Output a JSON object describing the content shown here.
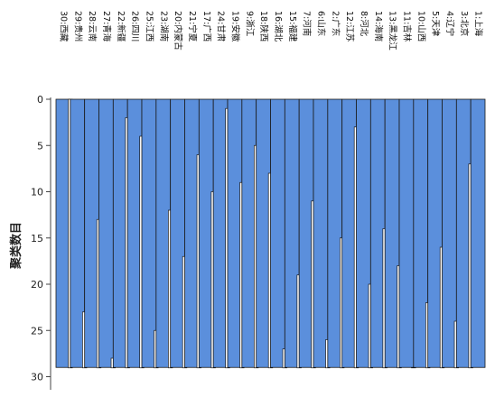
{
  "chart_data": {
    "type": "bar",
    "title": "",
    "xlabel": "",
    "ylabel": "聚类数目",
    "y_ticks": [
      0,
      5,
      10,
      15,
      20,
      25,
      30
    ],
    "ylim": [
      0,
      30
    ],
    "y_inverted": true,
    "grid": false,
    "bar_base": 29,
    "bar_color": "#5b8fdc",
    "gap_color": "#ffffff",
    "stroke_color": "#1a1a1a",
    "axis_color": "#444444",
    "categories": [
      "30:西藏",
      "29:贵州",
      "28:云南",
      "27:青海",
      "22:新疆",
      "26:四川",
      "25:江西",
      "23:湖南",
      "20:内蒙古",
      "21:宁夏",
      "17:广西",
      "24:甘肃",
      "19:安徽",
      "9:浙江",
      "18:陕西",
      "16:湖北",
      "15:福建",
      "7:河南",
      "6:山东",
      "2:广东",
      "12:江苏",
      "8:河北",
      "14:海南",
      "13:黑龙江",
      "11:吉林",
      "10:山西",
      "5:天津",
      "4:辽宁",
      "3:北京",
      "1:上海"
    ],
    "values": [
      0,
      23,
      13,
      28,
      2,
      4,
      25,
      12,
      17,
      6,
      10,
      1,
      9,
      5,
      8,
      27,
      19,
      11,
      26,
      15,
      3,
      20,
      14,
      18,
      29,
      22,
      16,
      24,
      7,
      21
    ]
  }
}
